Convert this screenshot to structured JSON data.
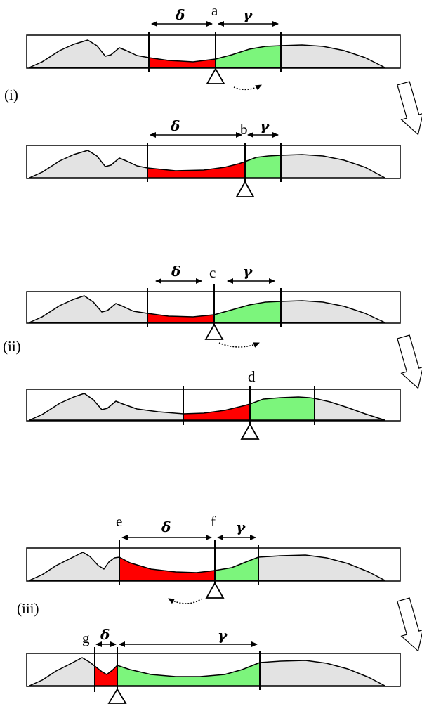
{
  "labels": {
    "delta": "δ",
    "gamma": "γ",
    "point_a": "a",
    "point_b": "b",
    "point_c": "c",
    "point_d": "d",
    "point_e": "e",
    "point_f": "f",
    "point_g": "g"
  },
  "stages": [
    "(i)",
    "(ii)",
    "(iii)"
  ],
  "colors": {
    "left_region": "#ff0000",
    "right_region": "#7cf57c",
    "background_signal": "#e3e3e3",
    "stroke": "#000000"
  }
}
